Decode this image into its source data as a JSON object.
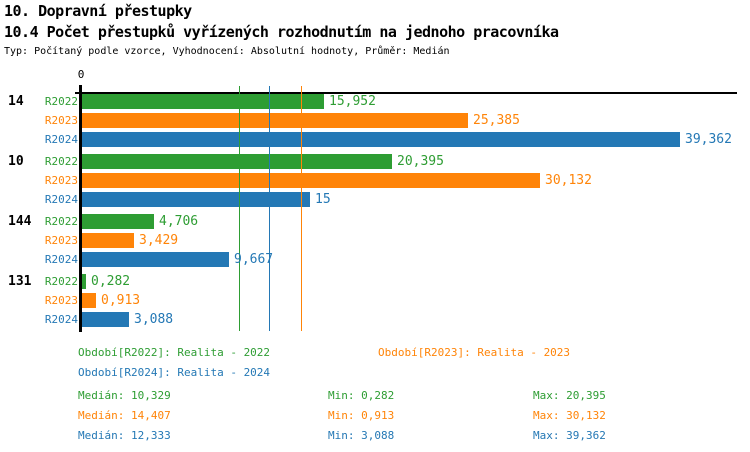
{
  "header": {
    "title": "10. Dopravní přestupky",
    "subtitle": "10.4 Počet přestupků vyřízených rozhodnutím na jednoho pracovníka",
    "meta": "Typ: Počítaný podle vzorce, Vyhodnocení: Absolutní hodnoty, Průměr: Medián"
  },
  "colors": {
    "green": "#2e9d33",
    "orange": "#ff8408",
    "blue": "#2478b5",
    "axis": "#000000"
  },
  "chart_data": {
    "type": "bar",
    "orientation": "horizontal",
    "x_axis": {
      "zero_label": "0",
      "xlim": [
        0,
        40
      ],
      "grid": false
    },
    "categories": [
      "14",
      "10",
      "144",
      "131"
    ],
    "series": [
      {
        "name": "R2022",
        "color_key": "green",
        "values": [
          15.952,
          20.395,
          4.706,
          0.282
        ],
        "labels": [
          "15,952",
          "20,395",
          "4,706",
          "0,282"
        ]
      },
      {
        "name": "R2023",
        "color_key": "orange",
        "values": [
          25.385,
          30.132,
          3.429,
          0.913
        ],
        "labels": [
          "25,385",
          "30,132",
          "3,429",
          "0,913"
        ]
      },
      {
        "name": "R2024",
        "color_key": "blue",
        "values": [
          39.362,
          15,
          9.667,
          3.088
        ],
        "labels": [
          "39,362",
          "15",
          "9,667",
          "3,088"
        ]
      }
    ],
    "median_lines": [
      {
        "series": "R2022",
        "color_key": "green",
        "value": 10.329
      },
      {
        "series": "R2024",
        "color_key": "blue",
        "value": 12.333
      },
      {
        "series": "R2023",
        "color_key": "orange",
        "value": 14.407
      }
    ],
    "legend": [
      {
        "text": "Období[R2022]: Realita - 2022",
        "color_key": "green",
        "row": 0,
        "col": 0
      },
      {
        "text": "Období[R2023]: Realita - 2023",
        "color_key": "orange",
        "row": 0,
        "col": 1
      },
      {
        "text": "Období[R2024]: Realita - 2024",
        "color_key": "blue",
        "row": 1,
        "col": 0
      }
    ],
    "stats": [
      {
        "color_key": "green",
        "median": "Medián: 10,329",
        "min": "Min: 0,282",
        "max": "Max: 20,395"
      },
      {
        "color_key": "orange",
        "median": "Medián: 14,407",
        "min": "Min: 0,913",
        "max": "Max: 30,132"
      },
      {
        "color_key": "blue",
        "median": "Medián: 12,333",
        "min": "Min: 3,088",
        "max": "Max: 39,362"
      }
    ]
  }
}
